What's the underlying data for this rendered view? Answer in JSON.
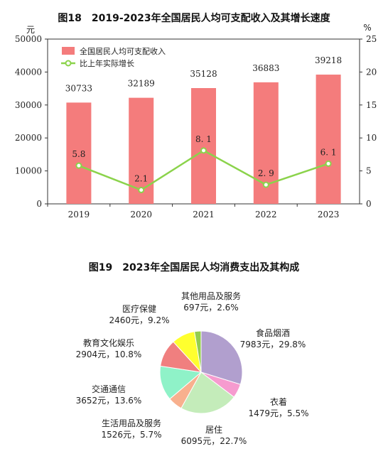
{
  "chart_data": [
    {
      "type": "bar",
      "title": "图18　2019-2023年全国居民人均可支配收入及其增长速度",
      "left_unit": "元",
      "right_unit": "%",
      "categories": [
        "2019",
        "2020",
        "2021",
        "2022",
        "2023"
      ],
      "series": [
        {
          "name": "全国居民人均可支配收入",
          "type": "bar",
          "axis": "left",
          "color": "#f47c7c",
          "values": [
            30733,
            32189,
            35128,
            36883,
            39218
          ]
        },
        {
          "name": "比上年实际增长",
          "type": "line",
          "axis": "right",
          "color": "#8bd34b",
          "values": [
            5.8,
            2.1,
            8.1,
            2.9,
            6.1
          ],
          "labels": [
            "5.8",
            "2.1",
            "8. 1",
            "2. 9",
            "6. 1"
          ]
        }
      ],
      "ylim_left": [
        0,
        50000
      ],
      "yticks_left": [
        0,
        10000,
        20000,
        30000,
        40000,
        50000
      ],
      "ylim_right": [
        0,
        25
      ],
      "yticks_right": [
        0,
        5,
        10,
        15,
        20,
        25
      ],
      "legend_position": "top-left",
      "grid": false
    },
    {
      "type": "pie",
      "title": "图19　2023年全国居民人均消费支出及其构成",
      "slices": [
        {
          "name": "食品烟酒",
          "value": 7983,
          "label": "7983元，29.8%",
          "percent": 29.8,
          "color": "#b19fce"
        },
        {
          "name": "衣着",
          "value": 1479,
          "label": "1479元，5.5%",
          "percent": 5.5,
          "color": "#f69bcf"
        },
        {
          "name": "居住",
          "value": 6095,
          "label": "6095元，22.7%",
          "percent": 22.7,
          "color": "#c4ecba"
        },
        {
          "name": "生活用品及服务",
          "value": 1526,
          "label": "1526元，5.7%",
          "percent": 5.7,
          "color": "#f8b08e"
        },
        {
          "name": "交通通信",
          "value": 3652,
          "label": "3652元，13.6%",
          "percent": 13.6,
          "color": "#8ff2c8"
        },
        {
          "name": "教育文化娱乐",
          "value": 2904,
          "label": "2904元，10.8%",
          "percent": 10.8,
          "color": "#f07f7f"
        },
        {
          "name": "医疗保健",
          "value": 2460,
          "label": "2460元，9.2%",
          "percent": 9.2,
          "color": "#ffff2e"
        },
        {
          "name": "其他用品及服务",
          "value": 697,
          "label": "697元，2.6%",
          "percent": 2.6,
          "color": "#93cd4e"
        }
      ]
    }
  ]
}
